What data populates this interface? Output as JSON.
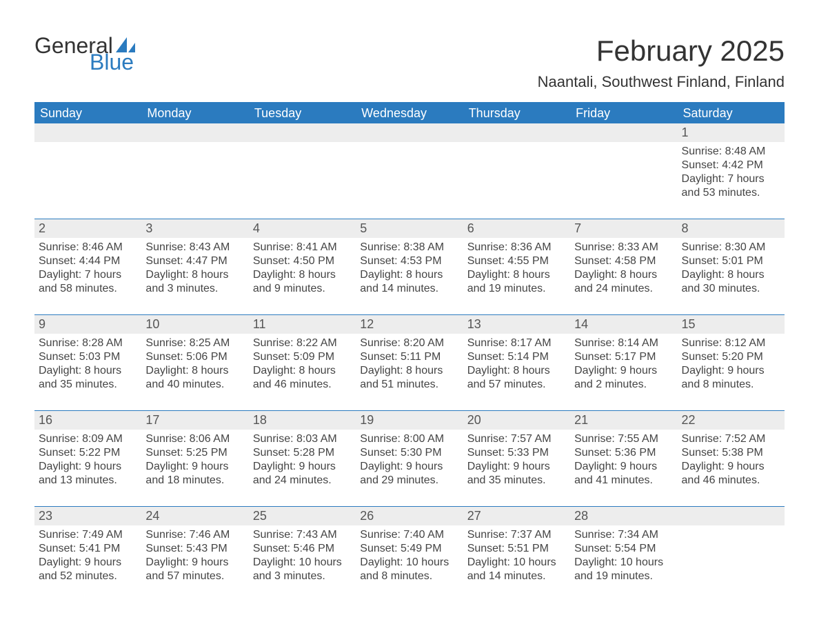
{
  "logo": {
    "text_general": "General",
    "text_blue": "Blue",
    "sail_color": "#2b7bbf"
  },
  "title": "February 2025",
  "location": "Naantali, Southwest Finland, Finland",
  "colors": {
    "header_bg": "#2b7bbf",
    "header_text": "#ffffff",
    "daynum_bg": "#ededed",
    "border": "#2b7bbf",
    "body_text": "#444444",
    "title_text": "#333333",
    "page_bg": "#ffffff"
  },
  "typography": {
    "title_fontsize": 42,
    "location_fontsize": 22,
    "header_fontsize": 18,
    "daynum_fontsize": 18,
    "body_fontsize": 16,
    "font_family": "Segoe UI"
  },
  "weekdays": [
    "Sunday",
    "Monday",
    "Tuesday",
    "Wednesday",
    "Thursday",
    "Friday",
    "Saturday"
  ],
  "weeks": [
    [
      {
        "day": "",
        "sunrise": "",
        "sunset": "",
        "daylight1": "",
        "daylight2": ""
      },
      {
        "day": "",
        "sunrise": "",
        "sunset": "",
        "daylight1": "",
        "daylight2": ""
      },
      {
        "day": "",
        "sunrise": "",
        "sunset": "",
        "daylight1": "",
        "daylight2": ""
      },
      {
        "day": "",
        "sunrise": "",
        "sunset": "",
        "daylight1": "",
        "daylight2": ""
      },
      {
        "day": "",
        "sunrise": "",
        "sunset": "",
        "daylight1": "",
        "daylight2": ""
      },
      {
        "day": "",
        "sunrise": "",
        "sunset": "",
        "daylight1": "",
        "daylight2": ""
      },
      {
        "day": "1",
        "sunrise": "Sunrise: 8:48 AM",
        "sunset": "Sunset: 4:42 PM",
        "daylight1": "Daylight: 7 hours",
        "daylight2": "and 53 minutes."
      }
    ],
    [
      {
        "day": "2",
        "sunrise": "Sunrise: 8:46 AM",
        "sunset": "Sunset: 4:44 PM",
        "daylight1": "Daylight: 7 hours",
        "daylight2": "and 58 minutes."
      },
      {
        "day": "3",
        "sunrise": "Sunrise: 8:43 AM",
        "sunset": "Sunset: 4:47 PM",
        "daylight1": "Daylight: 8 hours",
        "daylight2": "and 3 minutes."
      },
      {
        "day": "4",
        "sunrise": "Sunrise: 8:41 AM",
        "sunset": "Sunset: 4:50 PM",
        "daylight1": "Daylight: 8 hours",
        "daylight2": "and 9 minutes."
      },
      {
        "day": "5",
        "sunrise": "Sunrise: 8:38 AM",
        "sunset": "Sunset: 4:53 PM",
        "daylight1": "Daylight: 8 hours",
        "daylight2": "and 14 minutes."
      },
      {
        "day": "6",
        "sunrise": "Sunrise: 8:36 AM",
        "sunset": "Sunset: 4:55 PM",
        "daylight1": "Daylight: 8 hours",
        "daylight2": "and 19 minutes."
      },
      {
        "day": "7",
        "sunrise": "Sunrise: 8:33 AM",
        "sunset": "Sunset: 4:58 PM",
        "daylight1": "Daylight: 8 hours",
        "daylight2": "and 24 minutes."
      },
      {
        "day": "8",
        "sunrise": "Sunrise: 8:30 AM",
        "sunset": "Sunset: 5:01 PM",
        "daylight1": "Daylight: 8 hours",
        "daylight2": "and 30 minutes."
      }
    ],
    [
      {
        "day": "9",
        "sunrise": "Sunrise: 8:28 AM",
        "sunset": "Sunset: 5:03 PM",
        "daylight1": "Daylight: 8 hours",
        "daylight2": "and 35 minutes."
      },
      {
        "day": "10",
        "sunrise": "Sunrise: 8:25 AM",
        "sunset": "Sunset: 5:06 PM",
        "daylight1": "Daylight: 8 hours",
        "daylight2": "and 40 minutes."
      },
      {
        "day": "11",
        "sunrise": "Sunrise: 8:22 AM",
        "sunset": "Sunset: 5:09 PM",
        "daylight1": "Daylight: 8 hours",
        "daylight2": "and 46 minutes."
      },
      {
        "day": "12",
        "sunrise": "Sunrise: 8:20 AM",
        "sunset": "Sunset: 5:11 PM",
        "daylight1": "Daylight: 8 hours",
        "daylight2": "and 51 minutes."
      },
      {
        "day": "13",
        "sunrise": "Sunrise: 8:17 AM",
        "sunset": "Sunset: 5:14 PM",
        "daylight1": "Daylight: 8 hours",
        "daylight2": "and 57 minutes."
      },
      {
        "day": "14",
        "sunrise": "Sunrise: 8:14 AM",
        "sunset": "Sunset: 5:17 PM",
        "daylight1": "Daylight: 9 hours",
        "daylight2": "and 2 minutes."
      },
      {
        "day": "15",
        "sunrise": "Sunrise: 8:12 AM",
        "sunset": "Sunset: 5:20 PM",
        "daylight1": "Daylight: 9 hours",
        "daylight2": "and 8 minutes."
      }
    ],
    [
      {
        "day": "16",
        "sunrise": "Sunrise: 8:09 AM",
        "sunset": "Sunset: 5:22 PM",
        "daylight1": "Daylight: 9 hours",
        "daylight2": "and 13 minutes."
      },
      {
        "day": "17",
        "sunrise": "Sunrise: 8:06 AM",
        "sunset": "Sunset: 5:25 PM",
        "daylight1": "Daylight: 9 hours",
        "daylight2": "and 18 minutes."
      },
      {
        "day": "18",
        "sunrise": "Sunrise: 8:03 AM",
        "sunset": "Sunset: 5:28 PM",
        "daylight1": "Daylight: 9 hours",
        "daylight2": "and 24 minutes."
      },
      {
        "day": "19",
        "sunrise": "Sunrise: 8:00 AM",
        "sunset": "Sunset: 5:30 PM",
        "daylight1": "Daylight: 9 hours",
        "daylight2": "and 29 minutes."
      },
      {
        "day": "20",
        "sunrise": "Sunrise: 7:57 AM",
        "sunset": "Sunset: 5:33 PM",
        "daylight1": "Daylight: 9 hours",
        "daylight2": "and 35 minutes."
      },
      {
        "day": "21",
        "sunrise": "Sunrise: 7:55 AM",
        "sunset": "Sunset: 5:36 PM",
        "daylight1": "Daylight: 9 hours",
        "daylight2": "and 41 minutes."
      },
      {
        "day": "22",
        "sunrise": "Sunrise: 7:52 AM",
        "sunset": "Sunset: 5:38 PM",
        "daylight1": "Daylight: 9 hours",
        "daylight2": "and 46 minutes."
      }
    ],
    [
      {
        "day": "23",
        "sunrise": "Sunrise: 7:49 AM",
        "sunset": "Sunset: 5:41 PM",
        "daylight1": "Daylight: 9 hours",
        "daylight2": "and 52 minutes."
      },
      {
        "day": "24",
        "sunrise": "Sunrise: 7:46 AM",
        "sunset": "Sunset: 5:43 PM",
        "daylight1": "Daylight: 9 hours",
        "daylight2": "and 57 minutes."
      },
      {
        "day": "25",
        "sunrise": "Sunrise: 7:43 AM",
        "sunset": "Sunset: 5:46 PM",
        "daylight1": "Daylight: 10 hours",
        "daylight2": "and 3 minutes."
      },
      {
        "day": "26",
        "sunrise": "Sunrise: 7:40 AM",
        "sunset": "Sunset: 5:49 PM",
        "daylight1": "Daylight: 10 hours",
        "daylight2": "and 8 minutes."
      },
      {
        "day": "27",
        "sunrise": "Sunrise: 7:37 AM",
        "sunset": "Sunset: 5:51 PM",
        "daylight1": "Daylight: 10 hours",
        "daylight2": "and 14 minutes."
      },
      {
        "day": "28",
        "sunrise": "Sunrise: 7:34 AM",
        "sunset": "Sunset: 5:54 PM",
        "daylight1": "Daylight: 10 hours",
        "daylight2": "and 19 minutes."
      },
      {
        "day": "",
        "sunrise": "",
        "sunset": "",
        "daylight1": "",
        "daylight2": ""
      }
    ]
  ]
}
